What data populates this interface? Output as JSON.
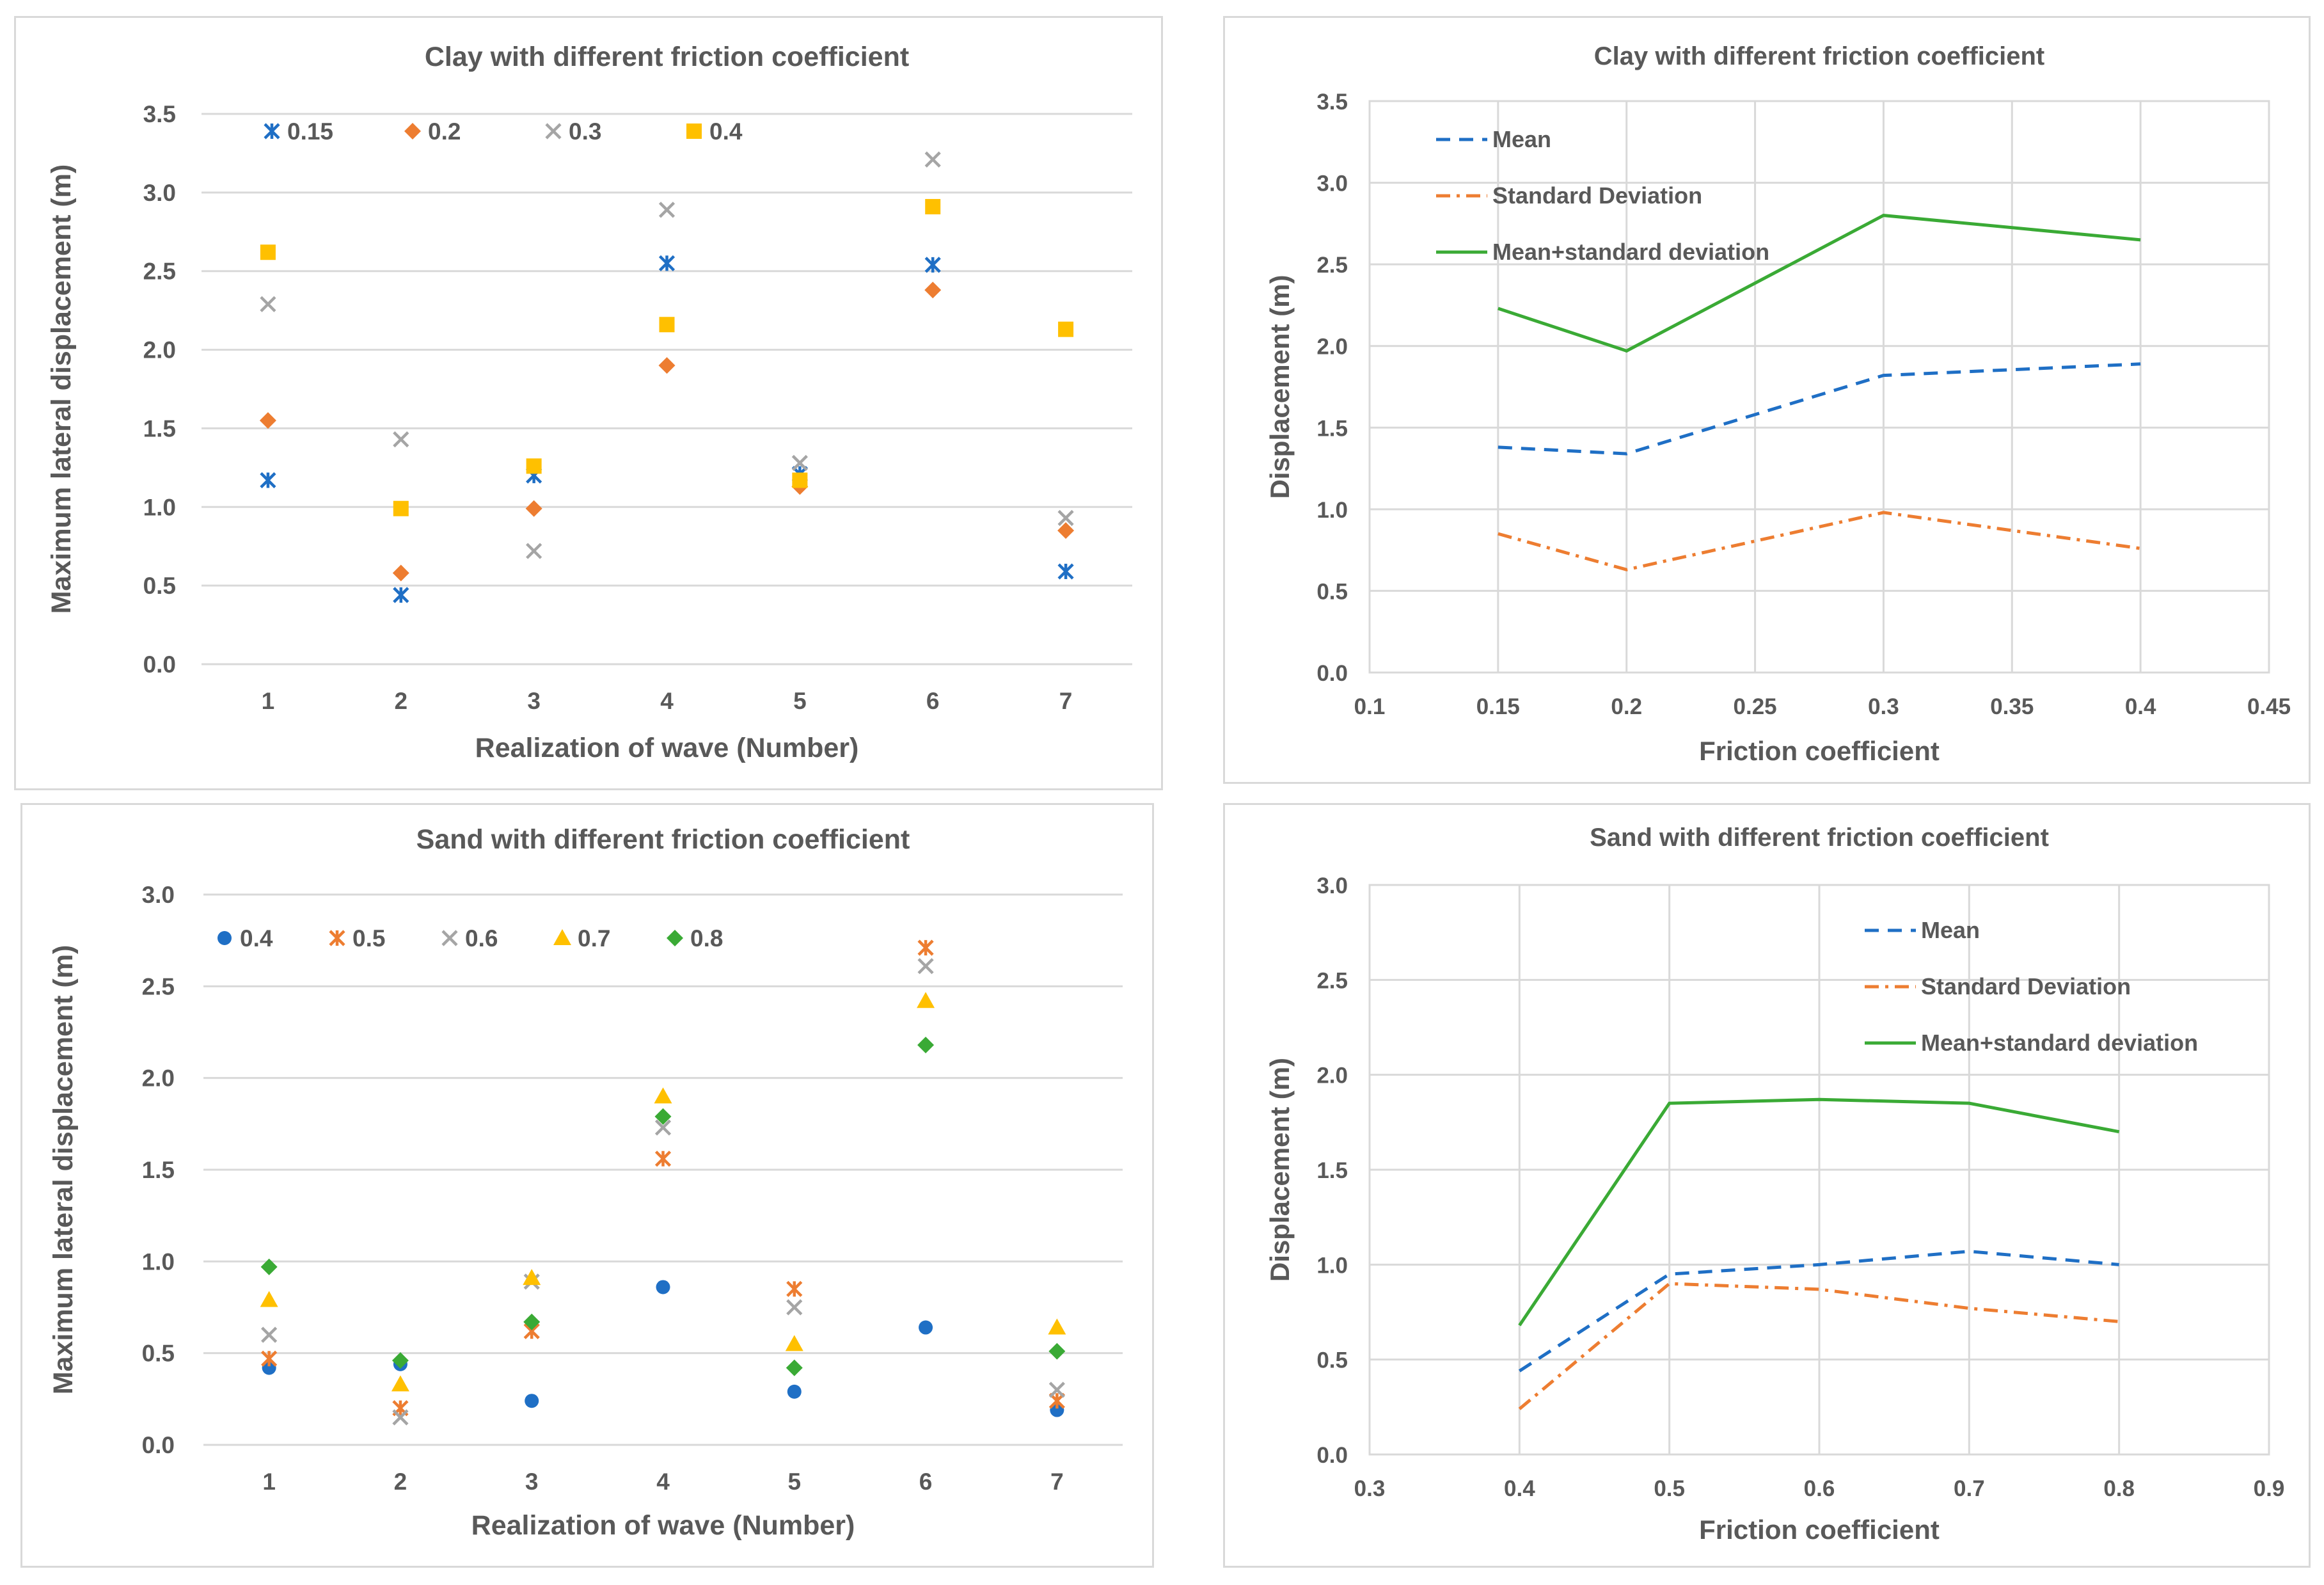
{
  "chart_data": [
    {
      "type": "scatter",
      "title": "Clay with different friction coefficient",
      "xlabel": "Realization of wave (Number)",
      "ylabel": "Maximum lateral displacement (m)",
      "categories": [
        "1",
        "2",
        "3",
        "4",
        "5",
        "6",
        "7"
      ],
      "ylim": [
        0,
        3.5
      ],
      "yticks": [
        "0.0",
        "0.5",
        "1.0",
        "1.5",
        "2.0",
        "2.5",
        "3.0",
        "3.5"
      ],
      "grid": true,
      "legend_position": "top-left",
      "series": [
        {
          "name": "0.15",
          "marker": "star",
          "color": "#1f6fc5",
          "values": [
            1.17,
            0.44,
            1.2,
            2.55,
            1.21,
            2.54,
            0.59
          ]
        },
        {
          "name": "0.2",
          "marker": "diamond",
          "color": "#ed7d31",
          "values": [
            1.55,
            0.58,
            0.99,
            1.9,
            1.13,
            2.38,
            0.85
          ]
        },
        {
          "name": "0.3",
          "marker": "x",
          "color": "#a5a5a5",
          "values": [
            2.29,
            1.43,
            0.72,
            2.89,
            1.28,
            3.21,
            0.93
          ]
        },
        {
          "name": "0.4",
          "marker": "square",
          "color": "#ffc000",
          "values": [
            2.62,
            0.99,
            1.26,
            2.16,
            1.17,
            2.91,
            2.13
          ]
        }
      ]
    },
    {
      "type": "line",
      "title": "Clay with different friction coefficient",
      "xlabel": "Friction coefficient",
      "ylabel": "Displacement (m)",
      "xlim": [
        0.1,
        0.45
      ],
      "xticks": [
        "0.1",
        "0.15",
        "0.2",
        "0.25",
        "0.3",
        "0.35",
        "0.4",
        "0.45"
      ],
      "ylim": [
        0,
        3.5
      ],
      "yticks": [
        "0.0",
        "0.5",
        "1.0",
        "1.5",
        "2.0",
        "2.5",
        "3.0",
        "3.5"
      ],
      "x": [
        0.15,
        0.2,
        0.3,
        0.4
      ],
      "grid": true,
      "legend_position": "top-left",
      "series": [
        {
          "name": "Mean",
          "style": "dash",
          "color": "#1f6fc5",
          "values": [
            1.38,
            1.34,
            1.82,
            1.89
          ]
        },
        {
          "name": "Standard Deviation",
          "style": "dashdot",
          "color": "#ed7d31",
          "values": [
            0.85,
            0.63,
            0.98,
            0.76
          ]
        },
        {
          "name": "Mean+standard deviation",
          "style": "solid",
          "color": "#3aaa35",
          "values": [
            2.23,
            1.97,
            2.8,
            2.65
          ]
        }
      ]
    },
    {
      "type": "scatter",
      "title": "Sand with different friction coefficient",
      "xlabel": "Realization of wave (Number)",
      "ylabel": "Maximum lateral displacement (m)",
      "categories": [
        "1",
        "2",
        "3",
        "4",
        "5",
        "6",
        "7"
      ],
      "ylim": [
        0,
        3.0
      ],
      "yticks": [
        "0.0",
        "0.5",
        "1.0",
        "1.5",
        "2.0",
        "2.5",
        "3.0"
      ],
      "grid": true,
      "legend_position": "top-left",
      "series": [
        {
          "name": "0.4",
          "marker": "circle",
          "color": "#1f6fc5",
          "values": [
            0.42,
            0.44,
            0.24,
            0.86,
            0.29,
            0.64,
            0.19
          ]
        },
        {
          "name": "0.5",
          "marker": "star",
          "color": "#ed7d31",
          "values": [
            0.47,
            0.2,
            0.62,
            1.56,
            0.85,
            2.71,
            0.24
          ]
        },
        {
          "name": "0.6",
          "marker": "x",
          "color": "#a5a5a5",
          "values": [
            0.6,
            0.15,
            0.89,
            1.73,
            0.75,
            2.61,
            0.3
          ]
        },
        {
          "name": "0.7",
          "marker": "triangle",
          "color": "#ffc000",
          "values": [
            0.79,
            0.33,
            0.91,
            1.9,
            0.55,
            2.42,
            0.64
          ]
        },
        {
          "name": "0.8",
          "marker": "diamond",
          "color": "#3aaa35",
          "values": [
            0.97,
            0.46,
            0.67,
            1.79,
            0.42,
            2.18,
            0.51
          ]
        }
      ]
    },
    {
      "type": "line",
      "title": "Sand with different friction coefficient",
      "xlabel": "Friction coefficient",
      "ylabel": "Displacement (m)",
      "xlim": [
        0.3,
        0.9
      ],
      "xticks": [
        "0.3",
        "0.4",
        "0.5",
        "0.6",
        "0.7",
        "0.8",
        "0.9"
      ],
      "ylim": [
        0,
        3.0
      ],
      "yticks": [
        "0.0",
        "0.5",
        "1.0",
        "1.5",
        "2.0",
        "2.5",
        "3.0"
      ],
      "x": [
        0.4,
        0.5,
        0.6,
        0.7,
        0.8
      ],
      "grid": true,
      "legend_position": "top-right",
      "series": [
        {
          "name": "Mean",
          "style": "dash",
          "color": "#1f6fc5",
          "values": [
            0.44,
            0.95,
            1.0,
            1.07,
            1.0
          ]
        },
        {
          "name": "Standard Deviation",
          "style": "dashdot",
          "color": "#ed7d31",
          "values": [
            0.24,
            0.9,
            0.87,
            0.77,
            0.7
          ]
        },
        {
          "name": "Mean+standard deviation",
          "style": "solid",
          "color": "#3aaa35",
          "values": [
            0.68,
            1.85,
            1.87,
            1.85,
            1.7
          ]
        }
      ]
    }
  ]
}
